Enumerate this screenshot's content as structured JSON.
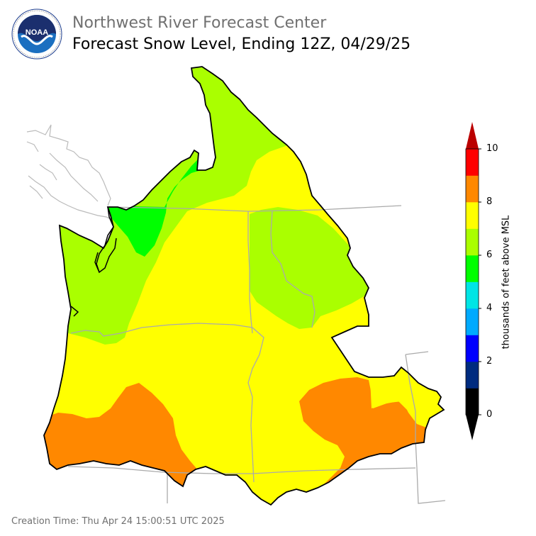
{
  "header": {
    "org_title": "Northwest River Forecast Center",
    "map_title": "Forecast Snow Level, Ending 12Z, 04/29/25"
  },
  "logo": {
    "name": "NOAA",
    "text": "NOAA",
    "ring_text": "NATIONAL OCEANIC AND ATMOSPHERIC ADMINISTRATION · U.S. DEPARTMENT OF COMMERCE"
  },
  "legend": {
    "label": "thousands of feet above MSL",
    "ticks": [
      "0",
      "2",
      "4",
      "6",
      "8",
      "10"
    ],
    "bins": [
      {
        "range": "0-1",
        "color": "#000000"
      },
      {
        "range": "1-2",
        "color": "#002b7f"
      },
      {
        "range": "2-3",
        "color": "#0000ff"
      },
      {
        "range": "3-4",
        "color": "#00aaff"
      },
      {
        "range": "4-5",
        "color": "#00e5e5"
      },
      {
        "range": "5-6",
        "color": "#00ff00"
      },
      {
        "range": "6-7",
        "color": "#aaff00"
      },
      {
        "range": "7-8",
        "color": "#ffff00"
      },
      {
        "range": "8-9",
        "color": "#ff8800"
      },
      {
        "range": "9-10",
        "color": "#ff0000"
      }
    ],
    "under_color": "#000000",
    "over_color": "#bb0000"
  },
  "map": {
    "colors": {
      "snow_5_6": "#00ff00",
      "snow_6_7": "#aaff00",
      "snow_7_8": "#ffff00",
      "snow_8_9": "#ff8800",
      "boundary": "#000000",
      "state_lines": "#aaaaaa",
      "coast_lines": "#bbbbbb"
    }
  },
  "footer": {
    "creation_time": "Creation Time: Thu Apr 24 15:00:51 UTC 2025"
  }
}
